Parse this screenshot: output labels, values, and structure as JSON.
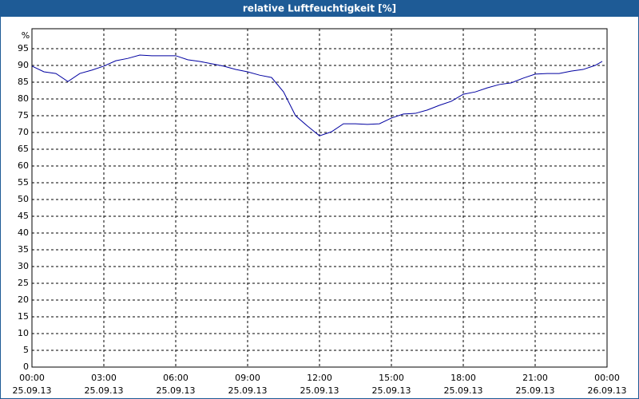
{
  "window_title": "relative Luftfeuchtigkeit [%]",
  "chart_data": {
    "type": "line",
    "y_label": "%",
    "x": [
      0,
      0.5,
      1,
      1.5,
      2,
      2.5,
      3,
      3.5,
      4,
      4.5,
      5,
      5.5,
      6,
      6.5,
      7,
      7.5,
      8,
      8.5,
      9,
      9.5,
      10,
      10.5,
      11,
      11.5,
      12,
      12.5,
      13,
      13.5,
      14,
      14.5,
      15,
      15.5,
      16,
      16.5,
      17,
      17.5,
      18,
      18.5,
      19,
      19.5,
      20,
      20.5,
      21,
      21.5,
      22,
      22.5,
      23,
      23.5,
      23.8
    ],
    "series": [
      {
        "name": "relative Luftfeuchtigkeit",
        "color": "#0000a0",
        "values": [
          89.8,
          88.1,
          87.6,
          85.2,
          87.6,
          88.6,
          89.8,
          91.4,
          92.1,
          93.1,
          92.9,
          92.9,
          92.9,
          91.7,
          91.2,
          90.5,
          89.8,
          88.8,
          88.1,
          87.1,
          86.4,
          82.1,
          75,
          71.9,
          69,
          70.2,
          72.6,
          72.6,
          72.4,
          72.6,
          74.3,
          75.5,
          75.7,
          76.7,
          78.1,
          79.3,
          81.4,
          82.1,
          83.3,
          84.3,
          84.8,
          86.2,
          87.4,
          87.6,
          87.6,
          88.3,
          88.8,
          90,
          91.2
        ]
      }
    ],
    "xlim": [
      0,
      24
    ],
    "xticks": [
      {
        "value": 0,
        "label": [
          "00:00",
          "25.09.13"
        ]
      },
      {
        "value": 3,
        "label": [
          "03:00",
          "25.09.13"
        ]
      },
      {
        "value": 6,
        "label": [
          "06:00",
          "25.09.13"
        ]
      },
      {
        "value": 9,
        "label": [
          "09:00",
          "25.09.13"
        ]
      },
      {
        "value": 12,
        "label": [
          "12:00",
          "25.09.13"
        ]
      },
      {
        "value": 15,
        "label": [
          "15:00",
          "25.09.13"
        ]
      },
      {
        "value": 18,
        "label": [
          "18:00",
          "25.09.13"
        ]
      },
      {
        "value": 21,
        "label": [
          "21:00",
          "25.09.13"
        ]
      },
      {
        "value": 24,
        "label": [
          "00:00",
          "26.09.13"
        ]
      }
    ],
    "ylim": [
      0,
      100
    ],
    "yticks": [
      0,
      5,
      10,
      15,
      20,
      25,
      30,
      35,
      40,
      45,
      50,
      55,
      60,
      65,
      70,
      75,
      80,
      85,
      90,
      95
    ],
    "grid": true
  }
}
